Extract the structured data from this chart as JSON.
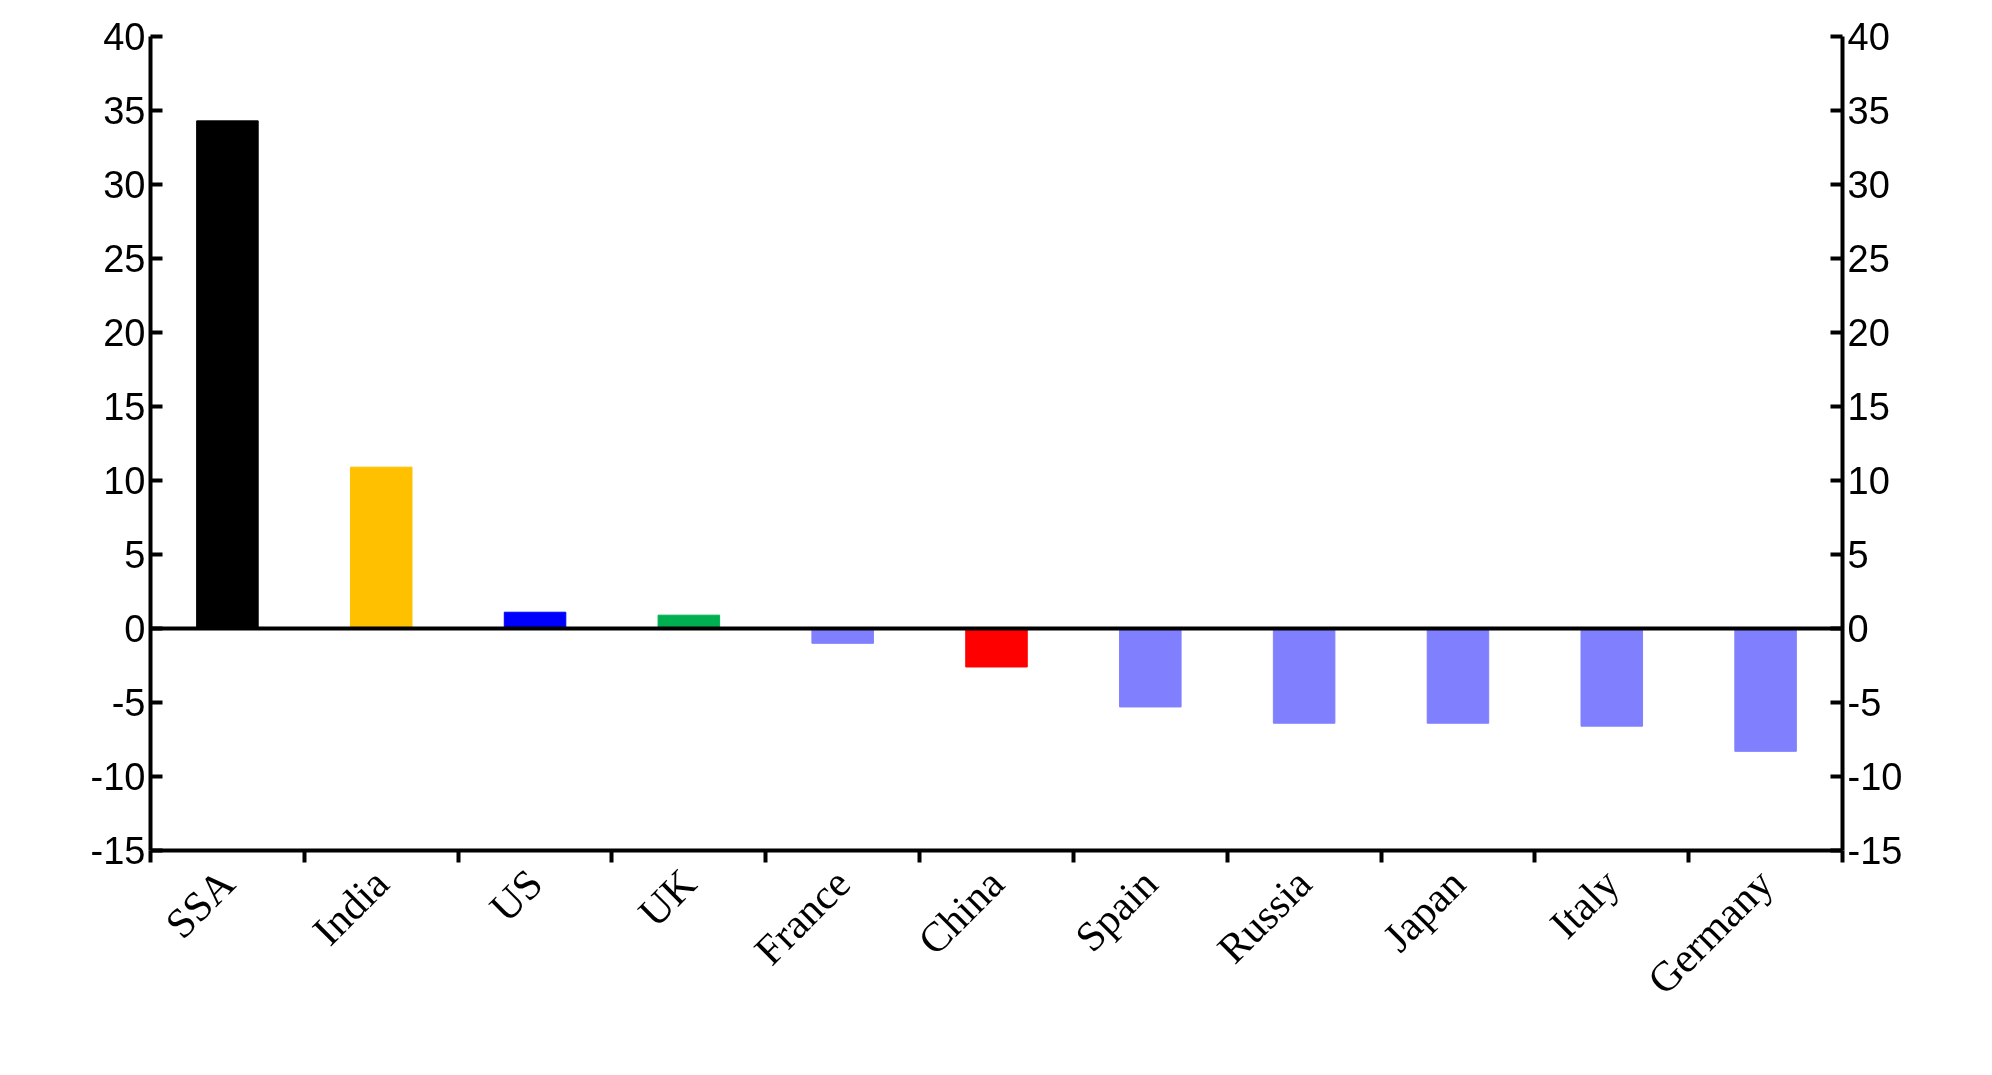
{
  "chart_data": {
    "type": "bar",
    "categories": [
      "SSA",
      "India",
      "US",
      "UK",
      "France",
      "China",
      "Spain",
      "Russia",
      "Japan",
      "Italy",
      "Germany"
    ],
    "values": [
      34.3,
      10.9,
      1.1,
      0.9,
      -1.0,
      -2.6,
      -5.3,
      -6.4,
      -6.4,
      -6.6,
      -8.3
    ],
    "colors": [
      "#000000",
      "#ffc000",
      "#0000ff",
      "#00b050",
      "#8080ff",
      "#ff0000",
      "#8080ff",
      "#8080ff",
      "#8080ff",
      "#8080ff",
      "#8080ff"
    ],
    "ylim": [
      -15,
      40
    ],
    "yticks": [
      -15,
      -10,
      -5,
      0,
      5,
      10,
      15,
      20,
      25,
      30,
      35,
      40
    ],
    "y2lim": [
      -15,
      40
    ],
    "y2ticks": [
      -15,
      -10,
      -5,
      0,
      5,
      10,
      15,
      20,
      25,
      30,
      35,
      40
    ],
    "ref_lines": [
      {
        "axis": "y",
        "value": 0,
        "label": null
      }
    ],
    "grid": false
  }
}
